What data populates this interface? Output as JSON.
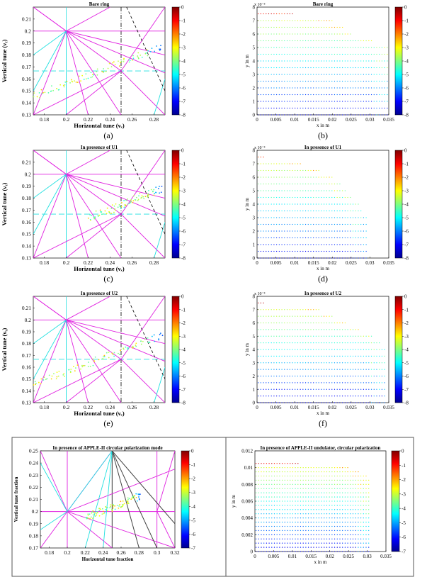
{
  "caption_letters": [
    "(a)",
    "(b)",
    "(c)",
    "(d)",
    "(e)",
    "(f)"
  ],
  "colorbar": {
    "ticks_small": [
      "0",
      "-1",
      "-2",
      "-3",
      "-4",
      "-5",
      "-6",
      "-7",
      "-8"
    ],
    "ticks_bottom": [
      "0",
      "-1",
      "-2",
      "-3",
      "-4",
      "-5",
      "-6",
      "-7"
    ]
  },
  "tune_diagram_labels": {
    "xlabel": "Horizontal tune (νₓ)",
    "ylabel": "Vertical tune (νᵧ)",
    "xticks": [
      "0.18",
      "0.2",
      "0.22",
      "0.24",
      "0.26",
      "0.28"
    ],
    "yticks": [
      "0.13",
      "0.14",
      "0.15",
      "0.16",
      "0.17",
      "0.18",
      "0.19",
      "0.2",
      "0.21"
    ]
  },
  "da_labels": {
    "xlabel": "x in m",
    "ylabel": "y in m",
    "exponent": "x 10⁻³",
    "xticks": [
      "0",
      "0.005",
      "0.01",
      "0.015",
      "0.02",
      "0.025",
      "0.03",
      "0.035"
    ],
    "yticks": [
      "0",
      "1",
      "2",
      "3",
      "4",
      "5",
      "6",
      "7",
      "8"
    ]
  },
  "panel_titles": {
    "a": "Bare ring",
    "b": "Bare ring",
    "c": "In presence of U1",
    "d": "In presence of U1",
    "e": "In presence of U2",
    "f": "In presence of U2",
    "g": "In presence of APPLE-II circular polarization mode",
    "h": "In presence of APPLE-II undulator, circular polarization"
  },
  "bottom_left": {
    "xlabel": "Horizontal tune fraction",
    "ylabel": "Vertical tune fraction",
    "xticks": [
      "0.18",
      "0.2",
      "0.22",
      "0.24",
      "0.26",
      "0.28",
      "0.3",
      "0.32"
    ],
    "yticks": [
      "0.17",
      "0.18",
      "0.19",
      "0.2",
      "0.21",
      "0.22",
      "0.23",
      "0.24",
      "0.25"
    ]
  },
  "bottom_right": {
    "xlabel": "x in m",
    "ylabel": "y in m",
    "xticks": [
      "0",
      "0.005",
      "0.01",
      "0.015",
      "0.02",
      "0.025",
      "0.03",
      "0.035"
    ],
    "yticks": [
      "0",
      "0.002",
      "0.004",
      "0.006",
      "0.008",
      "0.01",
      "0.012"
    ]
  },
  "chart_data": [
    {
      "panel": "a",
      "type": "scatter",
      "title": "Bare ring",
      "xlabel": "Horizontal tune (νₓ)",
      "ylabel": "Vertical tune (νᵧ)",
      "xlim": [
        0.17,
        0.29
      ],
      "ylim": [
        0.13,
        0.22
      ],
      "tune_footprint": {
        "start": [
          0.17,
          0.145
        ],
        "end": [
          0.287,
          0.187
        ]
      },
      "colorbar": [
        -8,
        0
      ]
    },
    {
      "panel": "b",
      "type": "scatter",
      "title": "Bare ring",
      "xlabel": "x in m",
      "ylabel": "y in m",
      "xlim": [
        0,
        0.035
      ],
      "ylim_e3": [
        0,
        8
      ],
      "y_rows_e3": [
        0,
        0.5,
        1,
        1.5,
        2,
        2.5,
        3,
        3.5,
        4,
        4.5,
        5,
        5.5,
        6,
        6.5,
        7,
        7.5
      ],
      "x_extent_per_row": [
        0.035,
        0.035,
        0.035,
        0.035,
        0.035,
        0.035,
        0.035,
        0.035,
        0.035,
        0.035,
        0.035,
        0.031,
        0.025,
        0.023,
        0.02,
        0.01
      ],
      "colorbar": [
        -8,
        0
      ]
    },
    {
      "panel": "c",
      "type": "scatter",
      "title": "In presence of U1",
      "xlabel": "Horizontal tune (νₓ)",
      "ylabel": "Vertical tune (νᵧ)",
      "xlim": [
        0.17,
        0.29
      ],
      "ylim": [
        0.13,
        0.22
      ],
      "tune_footprint": {
        "start": [
          0.22,
          0.163
        ],
        "end": [
          0.287,
          0.188
        ]
      },
      "colorbar": [
        -8,
        0
      ]
    },
    {
      "panel": "d",
      "type": "scatter",
      "title": "In presence of U1",
      "xlabel": "x in m",
      "ylabel": "y in m",
      "xlim": [
        0,
        0.035
      ],
      "ylim_e3": [
        0,
        8
      ],
      "y_rows_e3": [
        0,
        0.5,
        1,
        1.5,
        2,
        2.5,
        3,
        3.5,
        4,
        4.5,
        5,
        5.5,
        6,
        6.5,
        7,
        7.5
      ],
      "x_extent_per_row": [
        0.029,
        0.029,
        0.029,
        0.029,
        0.029,
        0.029,
        0.029,
        0.028,
        0.027,
        0.025,
        0.024,
        0.022,
        0.02,
        0.017,
        0.012,
        0.002
      ],
      "colorbar": [
        -8,
        0
      ]
    },
    {
      "panel": "e",
      "type": "scatter",
      "title": "In presence of U2",
      "xlabel": "Horizontal tune (νₓ)",
      "ylabel": "Vertical tune (νᵧ)",
      "xlim": [
        0.17,
        0.29
      ],
      "ylim": [
        0.13,
        0.22
      ],
      "tune_footprint": {
        "start": [
          0.17,
          0.145
        ],
        "end": [
          0.288,
          0.187
        ]
      },
      "colorbar": [
        -8,
        0
      ]
    },
    {
      "panel": "f",
      "type": "scatter",
      "title": "In presence of U2",
      "xlabel": "x in m",
      "ylabel": "y in m",
      "xlim": [
        0,
        0.035
      ],
      "ylim_e3": [
        0,
        8
      ],
      "y_rows_e3": [
        0,
        0.5,
        1,
        1.5,
        2,
        2.5,
        3,
        3.5,
        4,
        4.5,
        5,
        5.5,
        6,
        6.5,
        7,
        7.5
      ],
      "x_extent_per_row": [
        0.034,
        0.034,
        0.034,
        0.034,
        0.034,
        0.034,
        0.034,
        0.034,
        0.034,
        0.033,
        0.031,
        0.027,
        0.024,
        0.02,
        0.017,
        0.002
      ],
      "colorbar": [
        -8,
        0
      ]
    },
    {
      "panel": "g",
      "type": "scatter",
      "title": "In presence of APPLE-II circular polarization mode",
      "xlabel": "Horizontal tune fraction",
      "ylabel": "Vertical tune fraction",
      "xlim": [
        0.17,
        0.32
      ],
      "ylim": [
        0.17,
        0.25
      ],
      "tune_footprint": {
        "start": [
          0.22,
          0.195
        ],
        "end": [
          0.283,
          0.213
        ]
      },
      "colorbar": [
        -7,
        0
      ]
    },
    {
      "panel": "h",
      "type": "scatter",
      "title": "In presence of APPLE-II undulator, circular polarization",
      "xlabel": "x in m",
      "ylabel": "y in m",
      "xlim": [
        0,
        0.035
      ],
      "ylim": [
        0,
        0.012
      ],
      "y_rows": [
        0,
        0.0005,
        0.001,
        0.0015,
        0.002,
        0.0025,
        0.003,
        0.0035,
        0.004,
        0.0045,
        0.005,
        0.0055,
        0.006,
        0.0065,
        0.007,
        0.0075,
        0.008,
        0.0085,
        0.009,
        0.0095,
        0.01,
        0.0105
      ],
      "x_extent_per_row": [
        0.031,
        0.031,
        0.031,
        0.031,
        0.031,
        0.031,
        0.031,
        0.031,
        0.031,
        0.031,
        0.031,
        0.031,
        0.031,
        0.031,
        0.031,
        0.031,
        0.031,
        0.031,
        0.03,
        0.028,
        0.025,
        0.012
      ],
      "colorbar": [
        -7,
        0
      ]
    }
  ]
}
